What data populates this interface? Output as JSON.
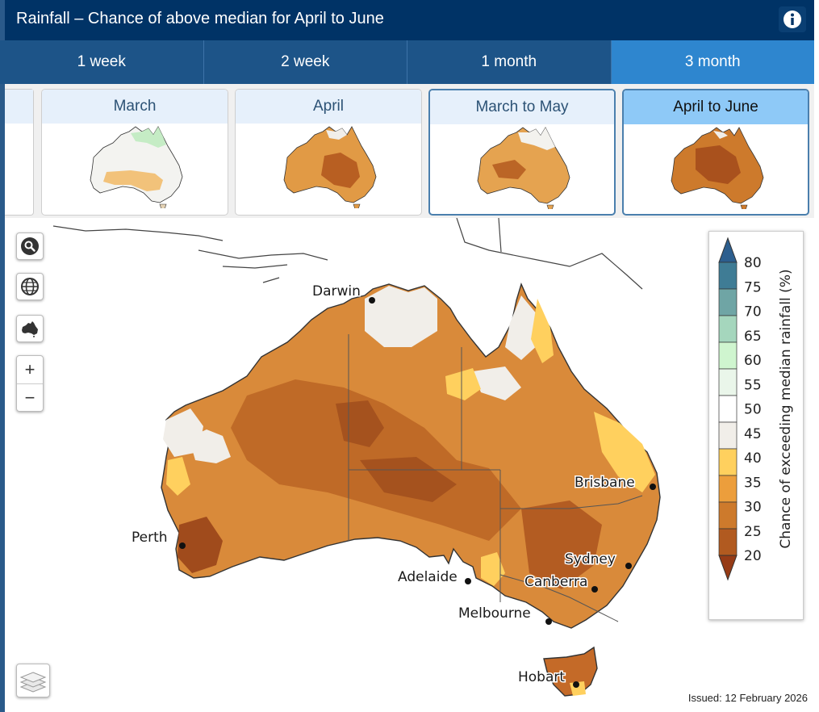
{
  "header": {
    "title": "Rainfall – Chance of above median for April to June",
    "info_icon": "info-icon"
  },
  "tabs": [
    {
      "label": "1 week",
      "active": false
    },
    {
      "label": "2 week",
      "active": false
    },
    {
      "label": "1 month",
      "active": false
    },
    {
      "label": "3 month",
      "active": true
    }
  ],
  "thumbnails": [
    {
      "label": "March"
    },
    {
      "label": "April"
    },
    {
      "label": "March to May"
    },
    {
      "label": "April to June",
      "current": true
    }
  ],
  "map": {
    "cities": [
      "Darwin",
      "Brisbane",
      "Perth",
      "Sydney",
      "Adelaide",
      "Canberra",
      "Melbourne",
      "Hobart"
    ],
    "controls": [
      "search-icon",
      "globe-icon",
      "australia-icon",
      "zoom-in",
      "zoom-out",
      "layers-icon"
    ],
    "zoom_in_label": "+",
    "zoom_out_label": "−"
  },
  "legend": {
    "title": "Chance of exceeding median rainfall (%)",
    "ticks": [
      "80",
      "75",
      "70",
      "65",
      "60",
      "55",
      "50",
      "45",
      "40",
      "35",
      "30",
      "25",
      "20"
    ],
    "colors": [
      "#2c5e8e",
      "#3f7c95",
      "#6fa5a5",
      "#a5d6bd",
      "#cff5cf",
      "#eaf6ea",
      "#ffffff",
      "#f1eee9",
      "#ffd05e",
      "#ec9e3c",
      "#cd7a2c",
      "#b15a20",
      "#963b16"
    ]
  },
  "issued": "Issued: 12 February 2026"
}
